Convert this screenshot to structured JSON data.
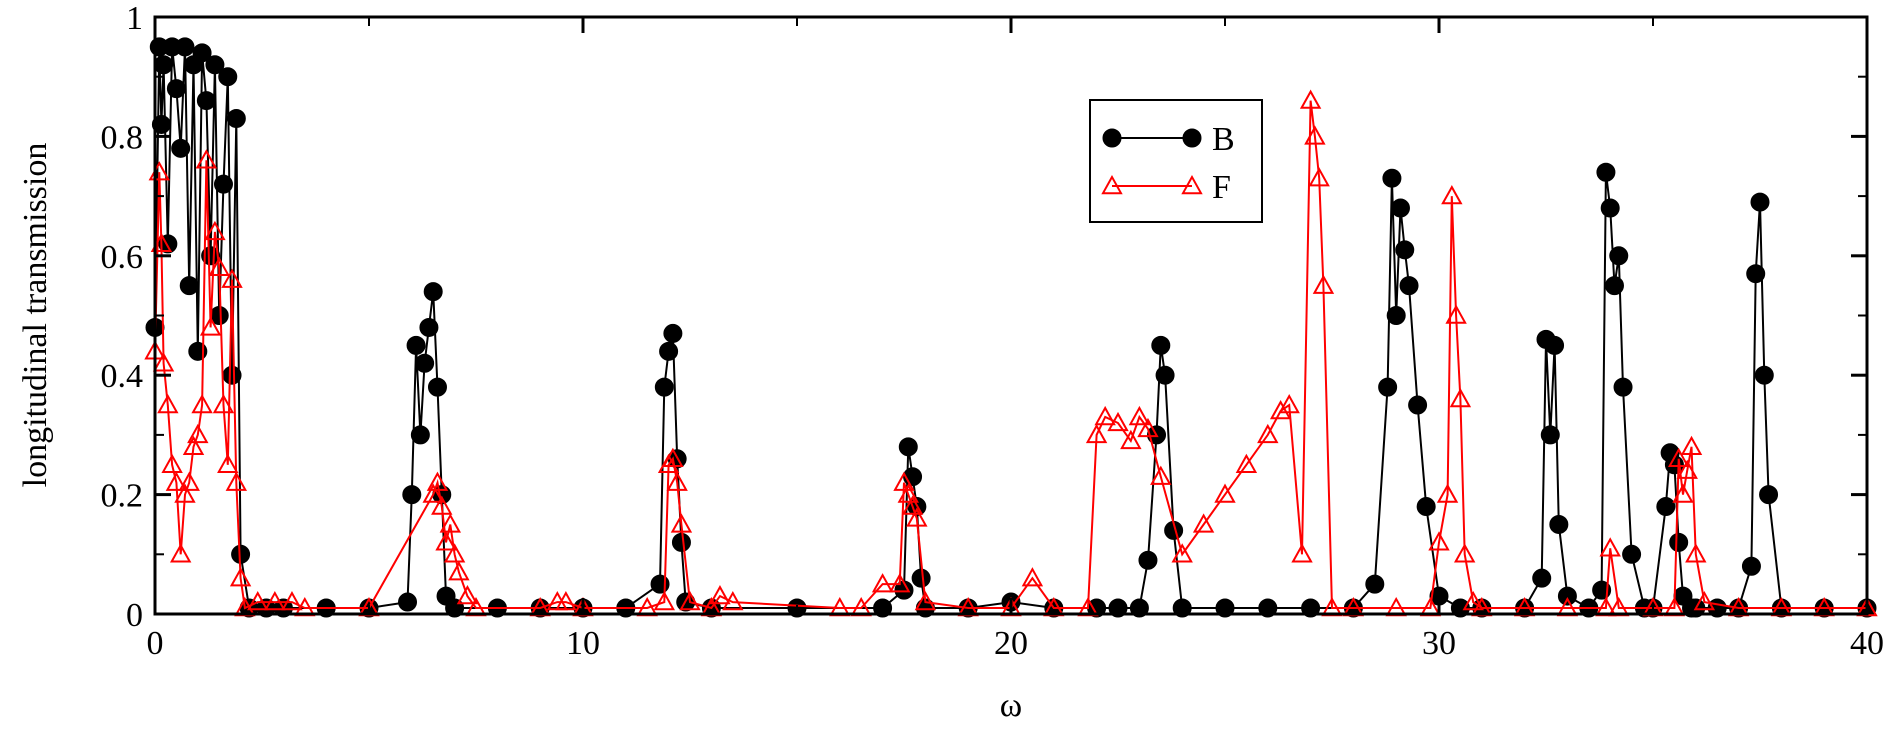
{
  "chart_data": {
    "type": "line",
    "xlabel": "ω",
    "ylabel": "longitudinal transmission",
    "xlim": [
      0,
      40
    ],
    "ylim": [
      0,
      1
    ],
    "x_ticks": [
      "0",
      "10",
      "20",
      "30",
      "40"
    ],
    "y_ticks": [
      "0",
      "0.2",
      "0.4",
      "0.6",
      "0.8",
      "1"
    ],
    "grid": false,
    "legend_position": "top-center",
    "series": [
      {
        "name": "B",
        "color": "#000000",
        "marker": "filled-circle",
        "x": [
          0.0,
          0.1,
          0.15,
          0.2,
          0.3,
          0.4,
          0.5,
          0.6,
          0.7,
          0.8,
          0.9,
          1.0,
          1.1,
          1.2,
          1.3,
          1.4,
          1.5,
          1.6,
          1.7,
          1.8,
          1.9,
          2.0,
          2.2,
          2.6,
          3.0,
          4.0,
          5.0,
          5.9,
          6.0,
          6.1,
          6.2,
          6.3,
          6.4,
          6.5,
          6.6,
          6.7,
          6.8,
          7.0,
          8.0,
          9.0,
          10.0,
          11.0,
          11.8,
          11.9,
          12.0,
          12.1,
          12.2,
          12.3,
          12.4,
          13.0,
          15.0,
          17.0,
          17.5,
          17.6,
          17.7,
          17.8,
          17.9,
          18.0,
          19.0,
          20.0,
          21.0,
          22.0,
          22.5,
          23.0,
          23.2,
          23.4,
          23.5,
          23.6,
          23.8,
          24.0,
          25.0,
          26.0,
          27.0,
          28.0,
          28.5,
          28.8,
          28.9,
          29.0,
          29.1,
          29.2,
          29.3,
          29.5,
          29.7,
          30.0,
          30.5,
          31.0,
          32.0,
          32.4,
          32.5,
          32.6,
          32.7,
          32.8,
          33.0,
          33.5,
          33.8,
          33.9,
          34.0,
          34.1,
          34.2,
          34.3,
          34.5,
          34.8,
          35.0,
          35.3,
          35.4,
          35.5,
          35.6,
          35.7,
          35.9,
          36.0,
          36.5,
          37.0,
          37.3,
          37.4,
          37.5,
          37.6,
          37.7,
          38.0,
          39.0,
          40.0
        ],
        "y": [
          0.48,
          0.95,
          0.82,
          0.92,
          0.62,
          0.95,
          0.88,
          0.78,
          0.95,
          0.55,
          0.92,
          0.44,
          0.94,
          0.86,
          0.6,
          0.92,
          0.5,
          0.72,
          0.9,
          0.4,
          0.83,
          0.1,
          0.01,
          0.01,
          0.01,
          0.01,
          0.01,
          0.02,
          0.2,
          0.45,
          0.3,
          0.42,
          0.48,
          0.54,
          0.38,
          0.2,
          0.03,
          0.01,
          0.01,
          0.01,
          0.01,
          0.01,
          0.05,
          0.38,
          0.44,
          0.47,
          0.26,
          0.12,
          0.02,
          0.01,
          0.01,
          0.01,
          0.04,
          0.28,
          0.23,
          0.18,
          0.06,
          0.01,
          0.01,
          0.02,
          0.01,
          0.01,
          0.01,
          0.01,
          0.09,
          0.3,
          0.45,
          0.4,
          0.14,
          0.01,
          0.01,
          0.01,
          0.01,
          0.01,
          0.05,
          0.38,
          0.73,
          0.5,
          0.68,
          0.61,
          0.55,
          0.35,
          0.18,
          0.03,
          0.01,
          0.01,
          0.01,
          0.06,
          0.46,
          0.3,
          0.45,
          0.15,
          0.03,
          0.01,
          0.04,
          0.74,
          0.68,
          0.55,
          0.6,
          0.38,
          0.1,
          0.01,
          0.01,
          0.18,
          0.27,
          0.25,
          0.12,
          0.03,
          0.01,
          0.01,
          0.01,
          0.01,
          0.08,
          0.57,
          0.69,
          0.4,
          0.2,
          0.01,
          0.01,
          0.01
        ]
      },
      {
        "name": "F",
        "color": "#ff0000",
        "marker": "open-triangle",
        "x": [
          0.0,
          0.1,
          0.15,
          0.2,
          0.3,
          0.4,
          0.5,
          0.6,
          0.7,
          0.8,
          0.9,
          1.0,
          1.1,
          1.2,
          1.3,
          1.4,
          1.5,
          1.6,
          1.7,
          1.8,
          1.9,
          2.0,
          2.1,
          2.4,
          2.8,
          3.2,
          3.5,
          5.0,
          6.5,
          6.6,
          6.7,
          6.8,
          6.9,
          7.0,
          7.1,
          7.3,
          7.5,
          9.0,
          9.4,
          9.6,
          10.0,
          11.5,
          11.9,
          12.0,
          12.1,
          12.2,
          12.3,
          12.5,
          13.0,
          13.2,
          13.5,
          16.0,
          16.5,
          17.0,
          17.4,
          17.5,
          17.6,
          17.7,
          17.8,
          18.0,
          19.0,
          20.0,
          20.5,
          21.0,
          21.8,
          22.0,
          22.2,
          22.5,
          22.8,
          23.0,
          23.2,
          23.5,
          24.0,
          24.5,
          25.0,
          25.5,
          26.0,
          26.3,
          26.5,
          26.8,
          27.0,
          27.1,
          27.2,
          27.3,
          27.5,
          28.0,
          29.0,
          29.8,
          30.0,
          30.2,
          30.3,
          30.4,
          30.5,
          30.6,
          30.8,
          31.0,
          32.0,
          33.0,
          33.9,
          34.0,
          34.2,
          35.0,
          35.5,
          35.6,
          35.7,
          35.8,
          35.9,
          36.0,
          36.2,
          37.0,
          38.0,
          39.0,
          40.0
        ],
        "y": [
          0.44,
          0.74,
          0.62,
          0.42,
          0.35,
          0.25,
          0.22,
          0.1,
          0.2,
          0.22,
          0.28,
          0.3,
          0.35,
          0.76,
          0.48,
          0.64,
          0.58,
          0.35,
          0.25,
          0.56,
          0.22,
          0.06,
          0.01,
          0.02,
          0.02,
          0.02,
          0.01,
          0.01,
          0.2,
          0.22,
          0.18,
          0.12,
          0.15,
          0.1,
          0.07,
          0.03,
          0.01,
          0.01,
          0.02,
          0.02,
          0.01,
          0.01,
          0.02,
          0.25,
          0.26,
          0.22,
          0.15,
          0.02,
          0.01,
          0.03,
          0.02,
          0.01,
          0.01,
          0.05,
          0.05,
          0.22,
          0.2,
          0.18,
          0.16,
          0.02,
          0.01,
          0.01,
          0.06,
          0.01,
          0.01,
          0.3,
          0.33,
          0.32,
          0.29,
          0.33,
          0.31,
          0.23,
          0.1,
          0.15,
          0.2,
          0.25,
          0.3,
          0.34,
          0.35,
          0.1,
          0.86,
          0.8,
          0.73,
          0.55,
          0.01,
          0.01,
          0.01,
          0.01,
          0.12,
          0.2,
          0.7,
          0.5,
          0.36,
          0.1,
          0.02,
          0.01,
          0.01,
          0.01,
          0.01,
          0.11,
          0.01,
          0.01,
          0.01,
          0.26,
          0.2,
          0.24,
          0.28,
          0.1,
          0.02,
          0.01,
          0.01,
          0.01,
          0.01
        ]
      }
    ]
  }
}
